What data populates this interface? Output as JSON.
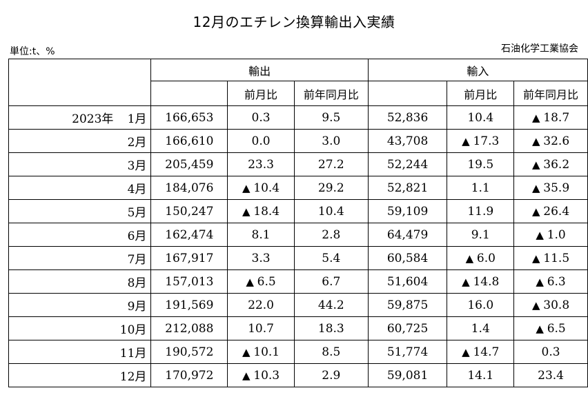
{
  "title": "12月のエチレン換算輸出入実績",
  "unit": "単位:t、%",
  "source": "石油化学工業協会",
  "headers": {
    "export": "輸出",
    "import": "輸入",
    "mom": "前月比",
    "yoy": "前年同月比"
  },
  "year_label": "2023年",
  "rows": [
    {
      "month": "1月",
      "exp": "166,653",
      "exp_mom": "0.3",
      "exp_mom_neg": false,
      "exp_yoy": "9.5",
      "exp_yoy_neg": false,
      "imp": "52,836",
      "imp_mom": "10.4",
      "imp_mom_neg": false,
      "imp_yoy": "18.7",
      "imp_yoy_neg": true
    },
    {
      "month": "2月",
      "exp": "166,610",
      "exp_mom": "0.0",
      "exp_mom_neg": false,
      "exp_yoy": "3.0",
      "exp_yoy_neg": false,
      "imp": "43,708",
      "imp_mom": "17.3",
      "imp_mom_neg": true,
      "imp_yoy": "32.6",
      "imp_yoy_neg": true
    },
    {
      "month": "3月",
      "exp": "205,459",
      "exp_mom": "23.3",
      "exp_mom_neg": false,
      "exp_yoy": "27.2",
      "exp_yoy_neg": false,
      "imp": "52,244",
      "imp_mom": "19.5",
      "imp_mom_neg": false,
      "imp_yoy": "36.2",
      "imp_yoy_neg": true
    },
    {
      "month": "4月",
      "exp": "184,076",
      "exp_mom": "10.4",
      "exp_mom_neg": true,
      "exp_yoy": "29.2",
      "exp_yoy_neg": false,
      "imp": "52,821",
      "imp_mom": "1.1",
      "imp_mom_neg": false,
      "imp_yoy": "35.9",
      "imp_yoy_neg": true
    },
    {
      "month": "5月",
      "exp": "150,247",
      "exp_mom": "18.4",
      "exp_mom_neg": true,
      "exp_yoy": "10.4",
      "exp_yoy_neg": false,
      "imp": "59,109",
      "imp_mom": "11.9",
      "imp_mom_neg": false,
      "imp_yoy": "26.4",
      "imp_yoy_neg": true
    },
    {
      "month": "6月",
      "exp": "162,474",
      "exp_mom": "8.1",
      "exp_mom_neg": false,
      "exp_yoy": "2.8",
      "exp_yoy_neg": false,
      "imp": "64,479",
      "imp_mom": "9.1",
      "imp_mom_neg": false,
      "imp_yoy": "1.0",
      "imp_yoy_neg": true
    },
    {
      "month": "7月",
      "exp": "167,917",
      "exp_mom": "3.3",
      "exp_mom_neg": false,
      "exp_yoy": "5.4",
      "exp_yoy_neg": false,
      "imp": "60,584",
      "imp_mom": "6.0",
      "imp_mom_neg": true,
      "imp_yoy": "11.5",
      "imp_yoy_neg": true
    },
    {
      "month": "8月",
      "exp": "157,013",
      "exp_mom": "6.5",
      "exp_mom_neg": true,
      "exp_yoy": "6.7",
      "exp_yoy_neg": false,
      "imp": "51,604",
      "imp_mom": "14.8",
      "imp_mom_neg": true,
      "imp_yoy": "6.3",
      "imp_yoy_neg": true
    },
    {
      "month": "9月",
      "exp": "191,569",
      "exp_mom": "22.0",
      "exp_mom_neg": false,
      "exp_yoy": "44.2",
      "exp_yoy_neg": false,
      "imp": "59,875",
      "imp_mom": "16.0",
      "imp_mom_neg": false,
      "imp_yoy": "30.8",
      "imp_yoy_neg": true
    },
    {
      "month": "10月",
      "exp": "212,088",
      "exp_mom": "10.7",
      "exp_mom_neg": false,
      "exp_yoy": "18.3",
      "exp_yoy_neg": false,
      "imp": "60,725",
      "imp_mom": "1.4",
      "imp_mom_neg": false,
      "imp_yoy": "6.5",
      "imp_yoy_neg": true
    },
    {
      "month": "11月",
      "exp": "190,572",
      "exp_mom": "10.1",
      "exp_mom_neg": true,
      "exp_yoy": "8.5",
      "exp_yoy_neg": false,
      "imp": "51,774",
      "imp_mom": "14.7",
      "imp_mom_neg": true,
      "imp_yoy": "0.3",
      "imp_yoy_neg": false
    },
    {
      "month": "12月",
      "exp": "170,972",
      "exp_mom": "10.3",
      "exp_mom_neg": true,
      "exp_yoy": "2.9",
      "exp_yoy_neg": false,
      "imp": "59,081",
      "imp_mom": "14.1",
      "imp_mom_neg": false,
      "imp_yoy": "23.4",
      "imp_yoy_neg": false
    }
  ]
}
